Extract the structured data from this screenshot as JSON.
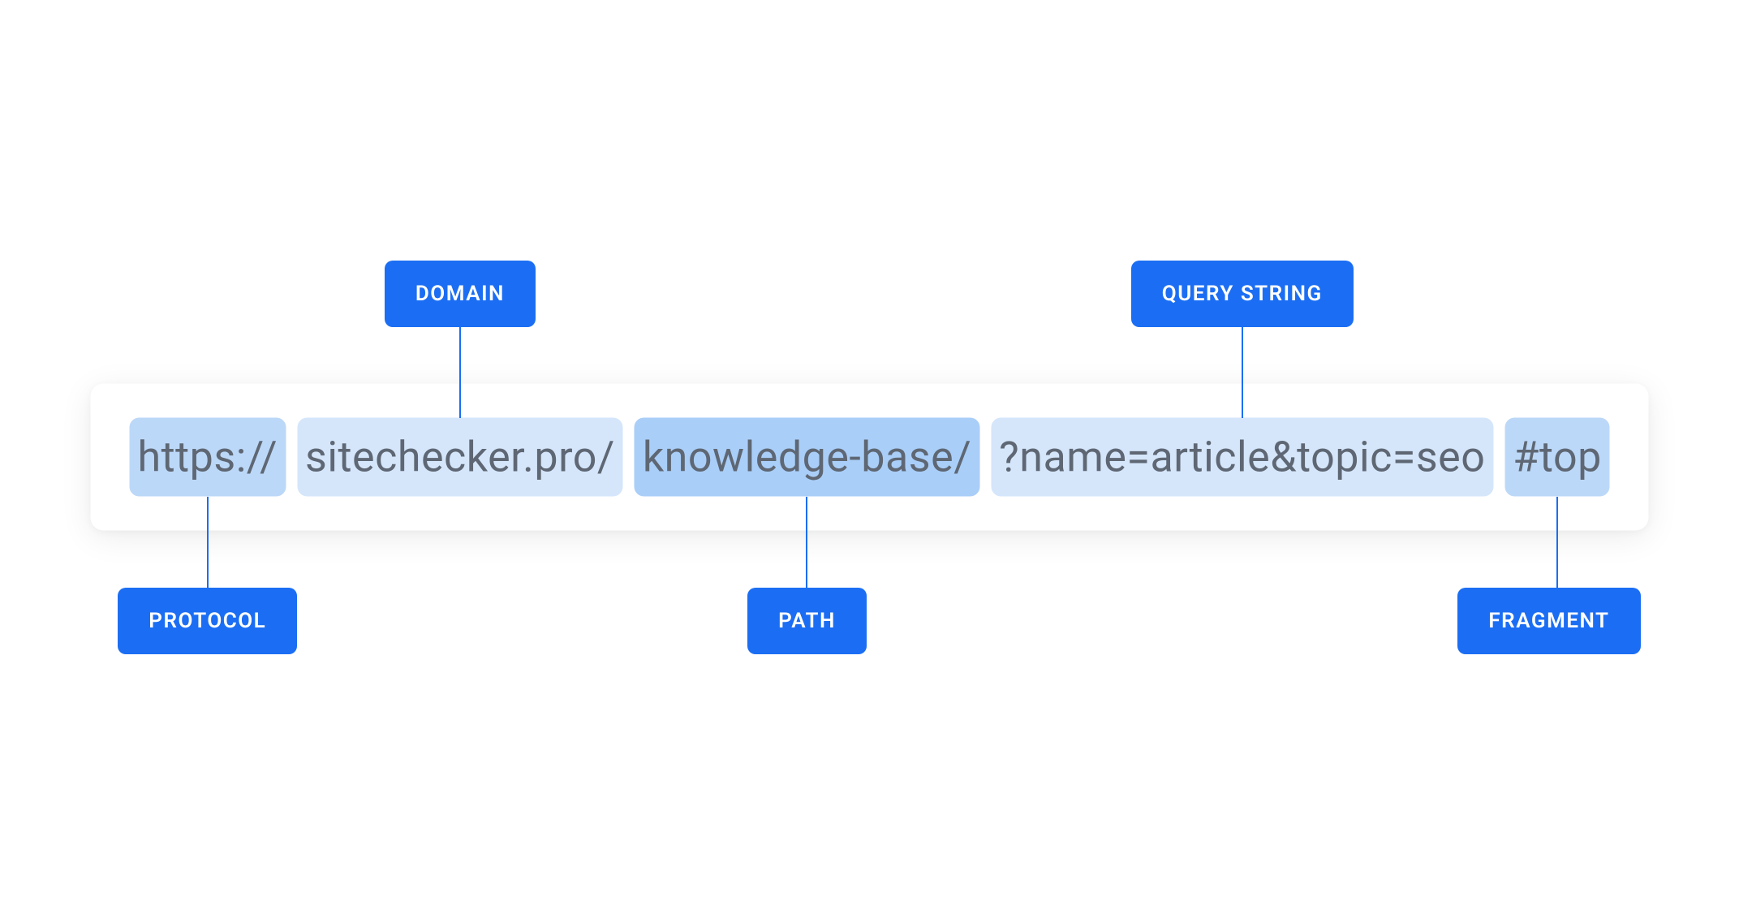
{
  "diagram": {
    "type": "infographic",
    "background_color": "#ffffff",
    "url_bar": {
      "background_color": "#ffffff",
      "shadow_color": "rgba(0,0,0,0.08)",
      "border_radius": 16,
      "font_size": 52,
      "text_color": "#5e6773"
    },
    "label_style": {
      "background_color": "#1b6ef3",
      "text_color": "#ffffff",
      "font_size": 26,
      "font_weight": 600,
      "border_radius": 10
    },
    "connector_color": "#1b6ef3",
    "connector_width": 2,
    "segment_gap": 14,
    "segments": [
      {
        "id": "protocol",
        "text": "https://",
        "bg_color": "#bcd8f8",
        "label": "PROTOCOL",
        "label_position": "bottom"
      },
      {
        "id": "domain",
        "text": "sitechecker.pro/",
        "bg_color": "#d5e6fb",
        "label": "DOMAIN",
        "label_position": "top"
      },
      {
        "id": "path",
        "text": "knowledge-base/",
        "bg_color": "#a9cef8",
        "label": "PATH",
        "label_position": "bottom"
      },
      {
        "id": "query",
        "text": "?name=article&topic=seo",
        "bg_color": "#d5e6fb",
        "label": "QUERY STRING",
        "label_position": "top"
      },
      {
        "id": "fragment",
        "text": "#top",
        "bg_color": "#bcd8f8",
        "label": "FRAGMENT",
        "label_position": "bottom"
      }
    ]
  }
}
